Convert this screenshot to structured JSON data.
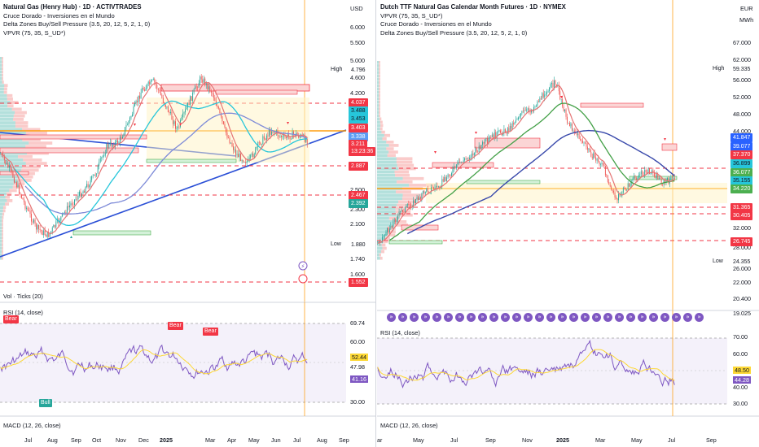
{
  "left": {
    "title": "Natural Gas (Henry Hub) · 1D · ACTIVTRADES",
    "indicators": [
      "Cruce Dorado - Inversiones en el Mundo",
      "Delta Zones Buy/Sell Pressure (3.5, 20, 12, 5, 2, 1, 0)",
      "VPVR (75, 35, S_UD*)"
    ],
    "currency": "USD",
    "price_axis": [
      "6.000",
      "5.500",
      "5.000",
      "4.600",
      "4.200",
      "3.800",
      "3.400",
      "3.100",
      "2.800",
      "2.500",
      "2.300",
      "2.100",
      "1.900",
      "1.740",
      "1.600"
    ],
    "tags": [
      {
        "label": "4.796",
        "side": "High",
        "color": "#ffffff",
        "text": "#131722"
      },
      {
        "label": "4.037",
        "color": "#f23645",
        "text": "#ffffff"
      },
      {
        "label": "3.488",
        "color": "#26c6da",
        "text": "#131722"
      },
      {
        "label": "3.453",
        "color": "#26c6da",
        "text": "#131722"
      },
      {
        "label": "3.403",
        "color": "#f23645",
        "text": "#ffffff"
      },
      {
        "label": "3.338",
        "color": "#5b9cf6",
        "text": "#ffffff"
      },
      {
        "label": "3.211",
        "color": "#f23645",
        "text": "#ffffff"
      },
      {
        "label": "13:23:36",
        "color": "#f23645",
        "text": "#ffffff"
      },
      {
        "label": "2.887",
        "color": "#f23645",
        "text": "#ffffff"
      },
      {
        "label": "2.467",
        "color": "#f23645",
        "text": "#ffffff"
      },
      {
        "label": "2.392",
        "color": "#26a69a",
        "text": "#ffffff"
      },
      {
        "label": "1.880",
        "side": "Low",
        "color": "#ffffff",
        "text": "#131722"
      },
      {
        "label": "1.552",
        "color": "#f23645",
        "text": "#ffffff"
      }
    ],
    "vol_title": "Vol · Ticks (20)",
    "rsi_title": "RSI (14, close)",
    "rsi_axis": [
      "69.74",
      "60.00",
      "52.44",
      "47.98",
      "41.16",
      "30.00"
    ],
    "rsi_badges": [
      "Bear",
      "Bear",
      "Bear",
      "Bull"
    ],
    "macd_title": "MACD (12, 26, close)",
    "dates": [
      "Jul",
      "Aug",
      "Sep",
      "Oct",
      "Nov",
      "Dec",
      "2025",
      "Mar",
      "Apr",
      "May",
      "Jun",
      "Jul",
      "Aug",
      "Sep"
    ]
  },
  "right": {
    "title": "Dutch TTF Natural Gas Calendar Month Futures · 1D · NYMEX",
    "indicators": [
      "VPVR (75, 35, S_UD*)",
      "Cruce Dorado - Inversiones en el Mundo",
      "Delta Zones Buy/Sell Pressure (3.5, 20, 12, 5, 2, 1, 0)"
    ],
    "currency": "EUR",
    "unit": "MWh",
    "price_axis": [
      "67.000",
      "62.000",
      "56.000",
      "52.000",
      "48.000",
      "44.000",
      "32.000",
      "28.000",
      "26.000",
      "22.000",
      "20.400",
      "19.025"
    ],
    "tags": [
      {
        "label": "59.335",
        "side": "High",
        "color": "#ffffff",
        "text": "#131722"
      },
      {
        "label": "41.847",
        "color": "#2962ff",
        "text": "#ffffff"
      },
      {
        "label": "39.077",
        "color": "#2962ff",
        "text": "#ffffff"
      },
      {
        "label": "37.370",
        "color": "#f23645",
        "text": "#ffffff"
      },
      {
        "label": "36.899",
        "color": "#26c6da",
        "text": "#131722"
      },
      {
        "label": "36.077",
        "color": "#4caf50",
        "text": "#ffffff"
      },
      {
        "label": "35.155",
        "color": "#26c6da",
        "text": "#131722"
      },
      {
        "label": "34.220",
        "color": "#4caf50",
        "text": "#ffffff"
      },
      {
        "label": "31.365",
        "color": "#f23645",
        "text": "#ffffff"
      },
      {
        "label": "30.405",
        "color": "#f23645",
        "text": "#ffffff"
      },
      {
        "label": "26.745",
        "color": "#f23645",
        "text": "#ffffff"
      },
      {
        "label": "24.355",
        "side": "Low",
        "color": "#ffffff",
        "text": "#131722"
      }
    ],
    "rsi_title": "RSI (14, close)",
    "rsi_axis": [
      "70.00",
      "60.00",
      "48.50",
      "44.28",
      "40.00",
      "30.00"
    ],
    "macd_title": "MACD (12, 26, close)",
    "dates": [
      "ar",
      "May",
      "Jul",
      "Sep",
      "Nov",
      "2025",
      "Mar",
      "May",
      "Jul",
      "Sep"
    ]
  }
}
